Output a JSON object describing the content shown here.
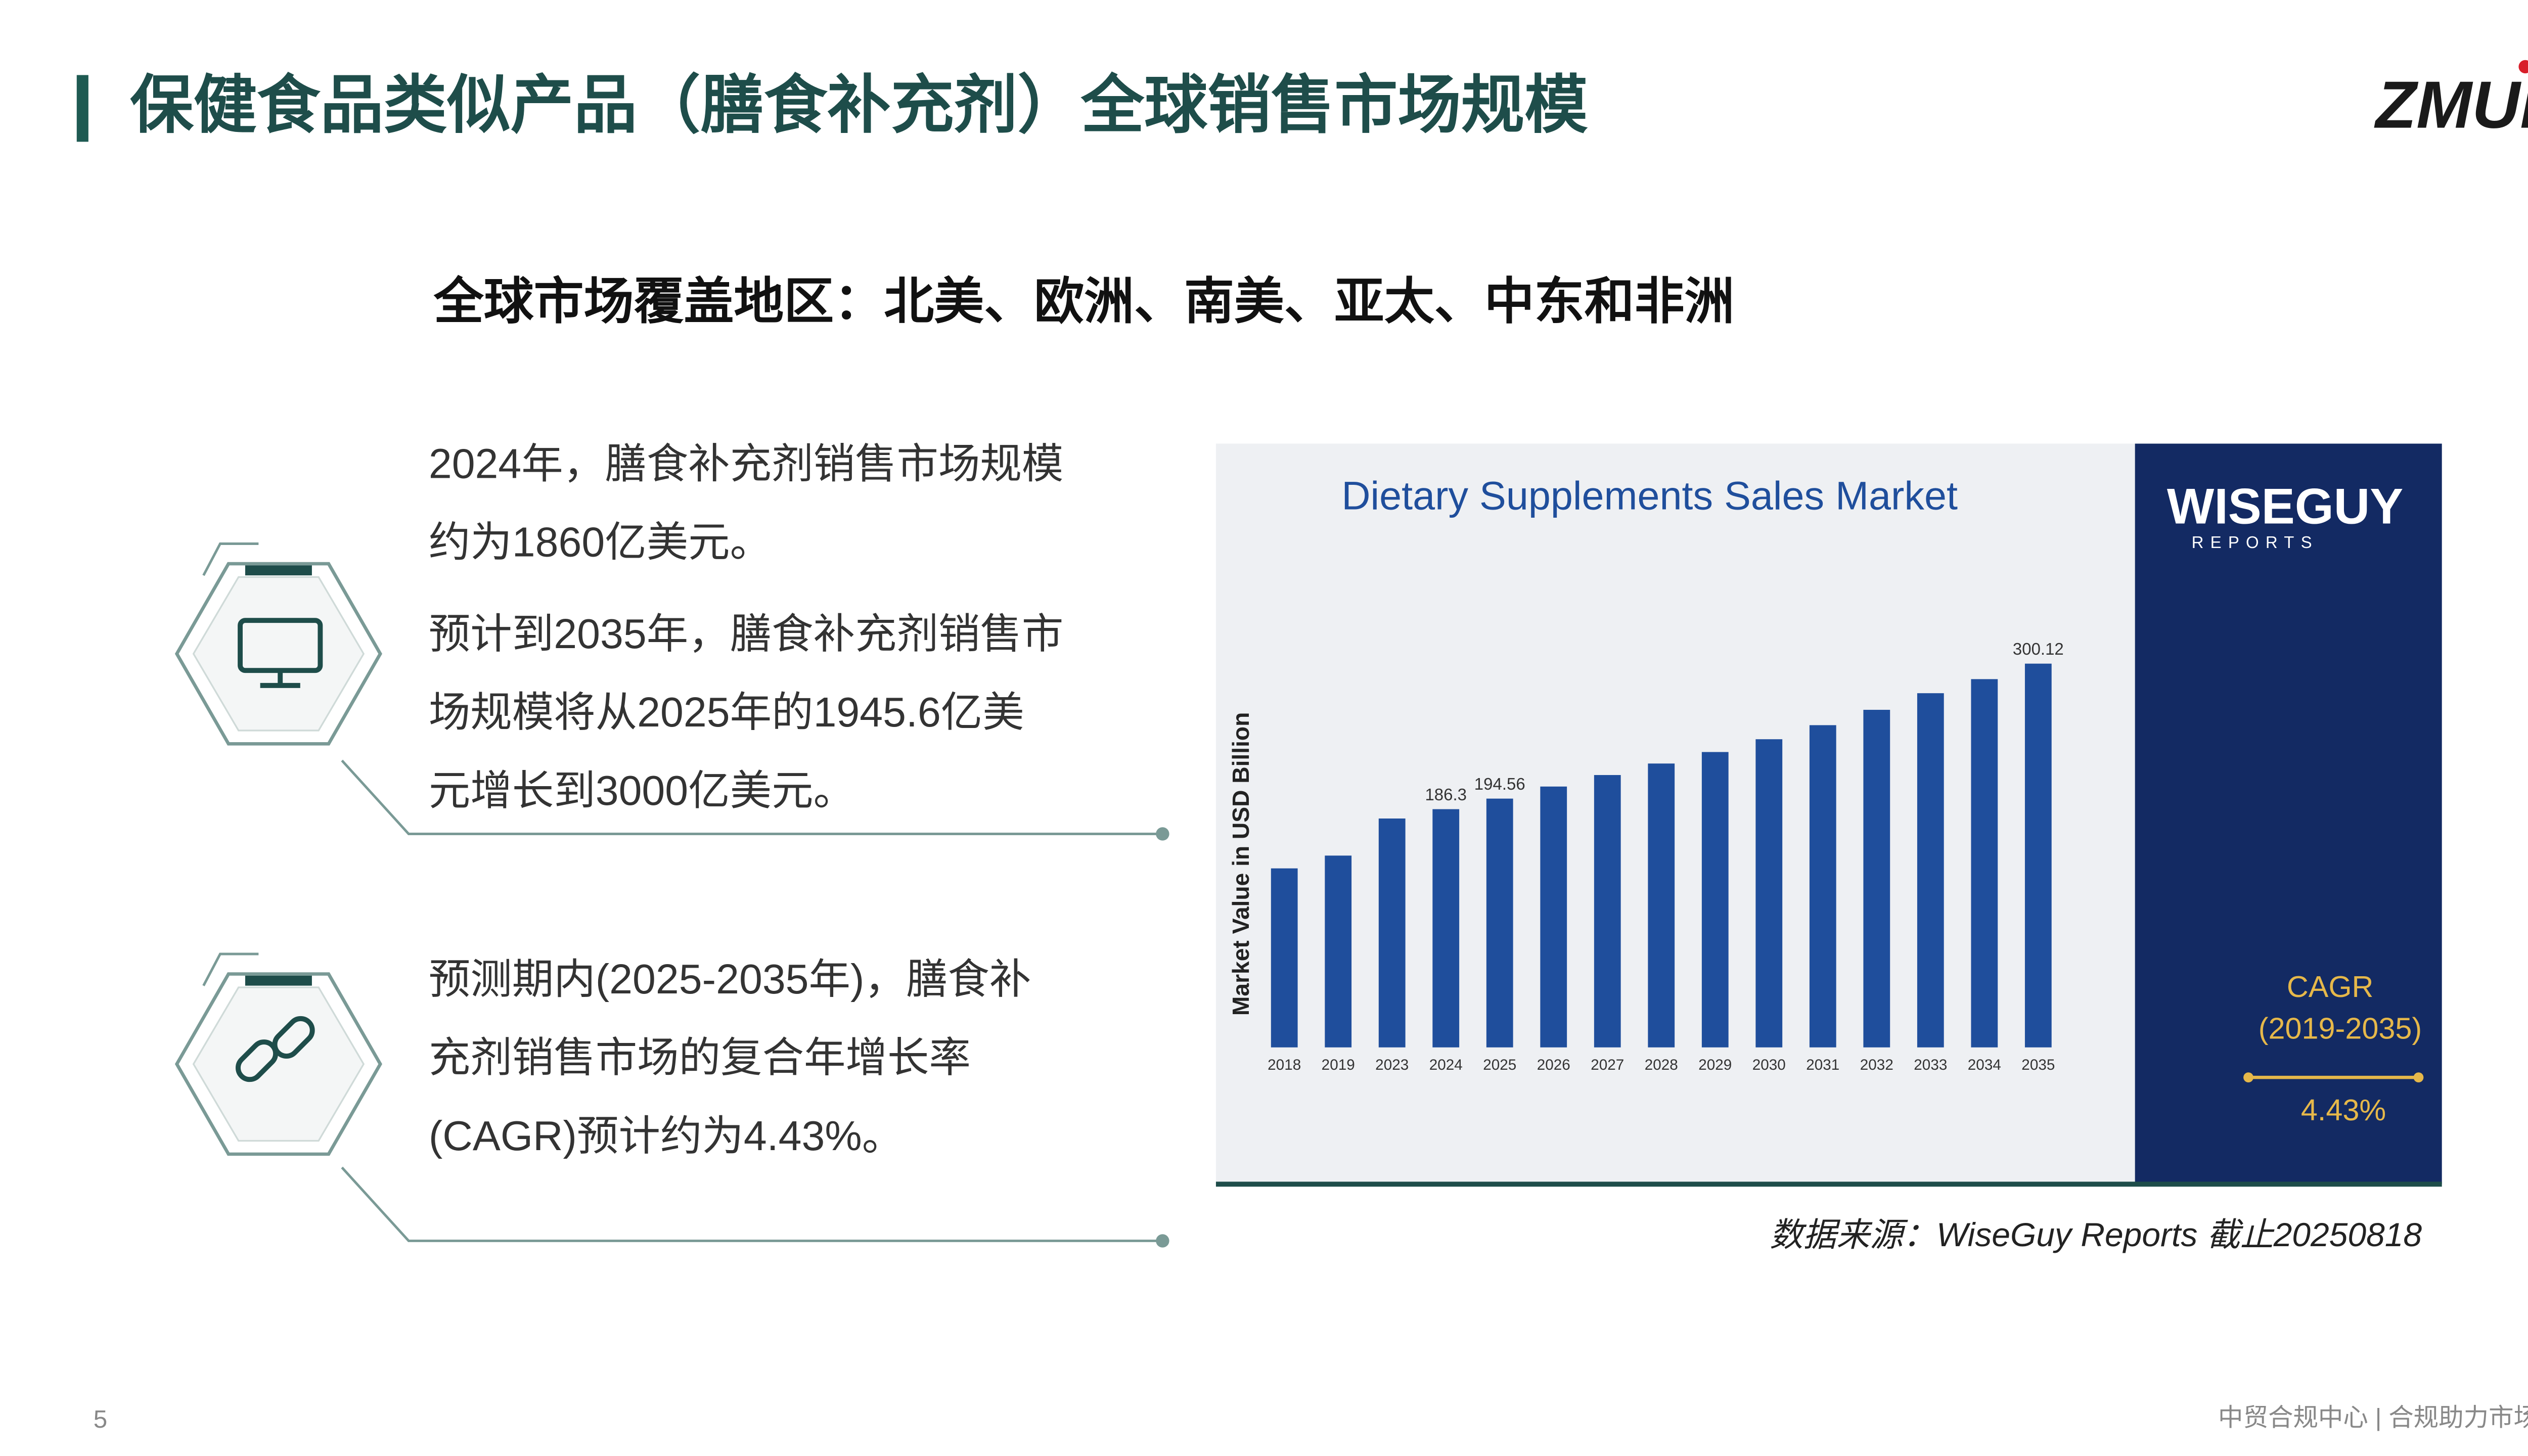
{
  "header": {
    "title": "保健食品类似产品（膳食补充剂）全球销售市场规模",
    "logo": "ZMUi"
  },
  "subtitle": "全球市场覆盖地区：北美、欧洲、南美、亚太、中东和非洲",
  "points": [
    {
      "paragraphs": [
        [
          "2024年，膳食补充剂销售市场规模",
          "约为1860亿美元。"
        ],
        [
          "预计到2035年，膳食补充剂销售市",
          "场规模将从2025年的1945.6亿美",
          "元增长到3000亿美元。"
        ]
      ]
    },
    {
      "paragraphs": [
        [
          "预测期内(2025-2035年)，膳食补",
          "充剂销售市场的复合年增长率",
          "(CAGR)预计约为4.43%。"
        ]
      ]
    }
  ],
  "chart_data": {
    "type": "bar",
    "title": "Dietary Supplements Sales Market",
    "y_label": "Market Value in USD Billion",
    "categories": [
      "2018",
      "2019",
      "2023",
      "2024",
      "2025",
      "2026",
      "2027",
      "2028",
      "2029",
      "2030",
      "2031",
      "2032",
      "2033",
      "2034",
      "2035"
    ],
    "values": [
      140,
      150,
      179,
      186.3,
      194.56,
      204,
      213,
      222,
      231,
      241,
      252,
      264,
      277,
      288,
      300.12
    ],
    "value_labels": [
      null,
      null,
      null,
      "186.3",
      "194.56",
      null,
      null,
      null,
      null,
      null,
      null,
      null,
      null,
      null,
      "300.12"
    ],
    "color": "#1f4e9c",
    "ylim": [
      0,
      330
    ],
    "brand": "WISEGUY",
    "brand_sub": "REPORTS",
    "cagr_label": "CAGR",
    "cagr_period": "(2019-2035)",
    "cagr_value": "4.43%"
  },
  "source": "数据来源：WiseGuy Reports 截止20250818",
  "footer": {
    "page": "5",
    "text": "中贸合规中心 | 合规助力市场"
  }
}
